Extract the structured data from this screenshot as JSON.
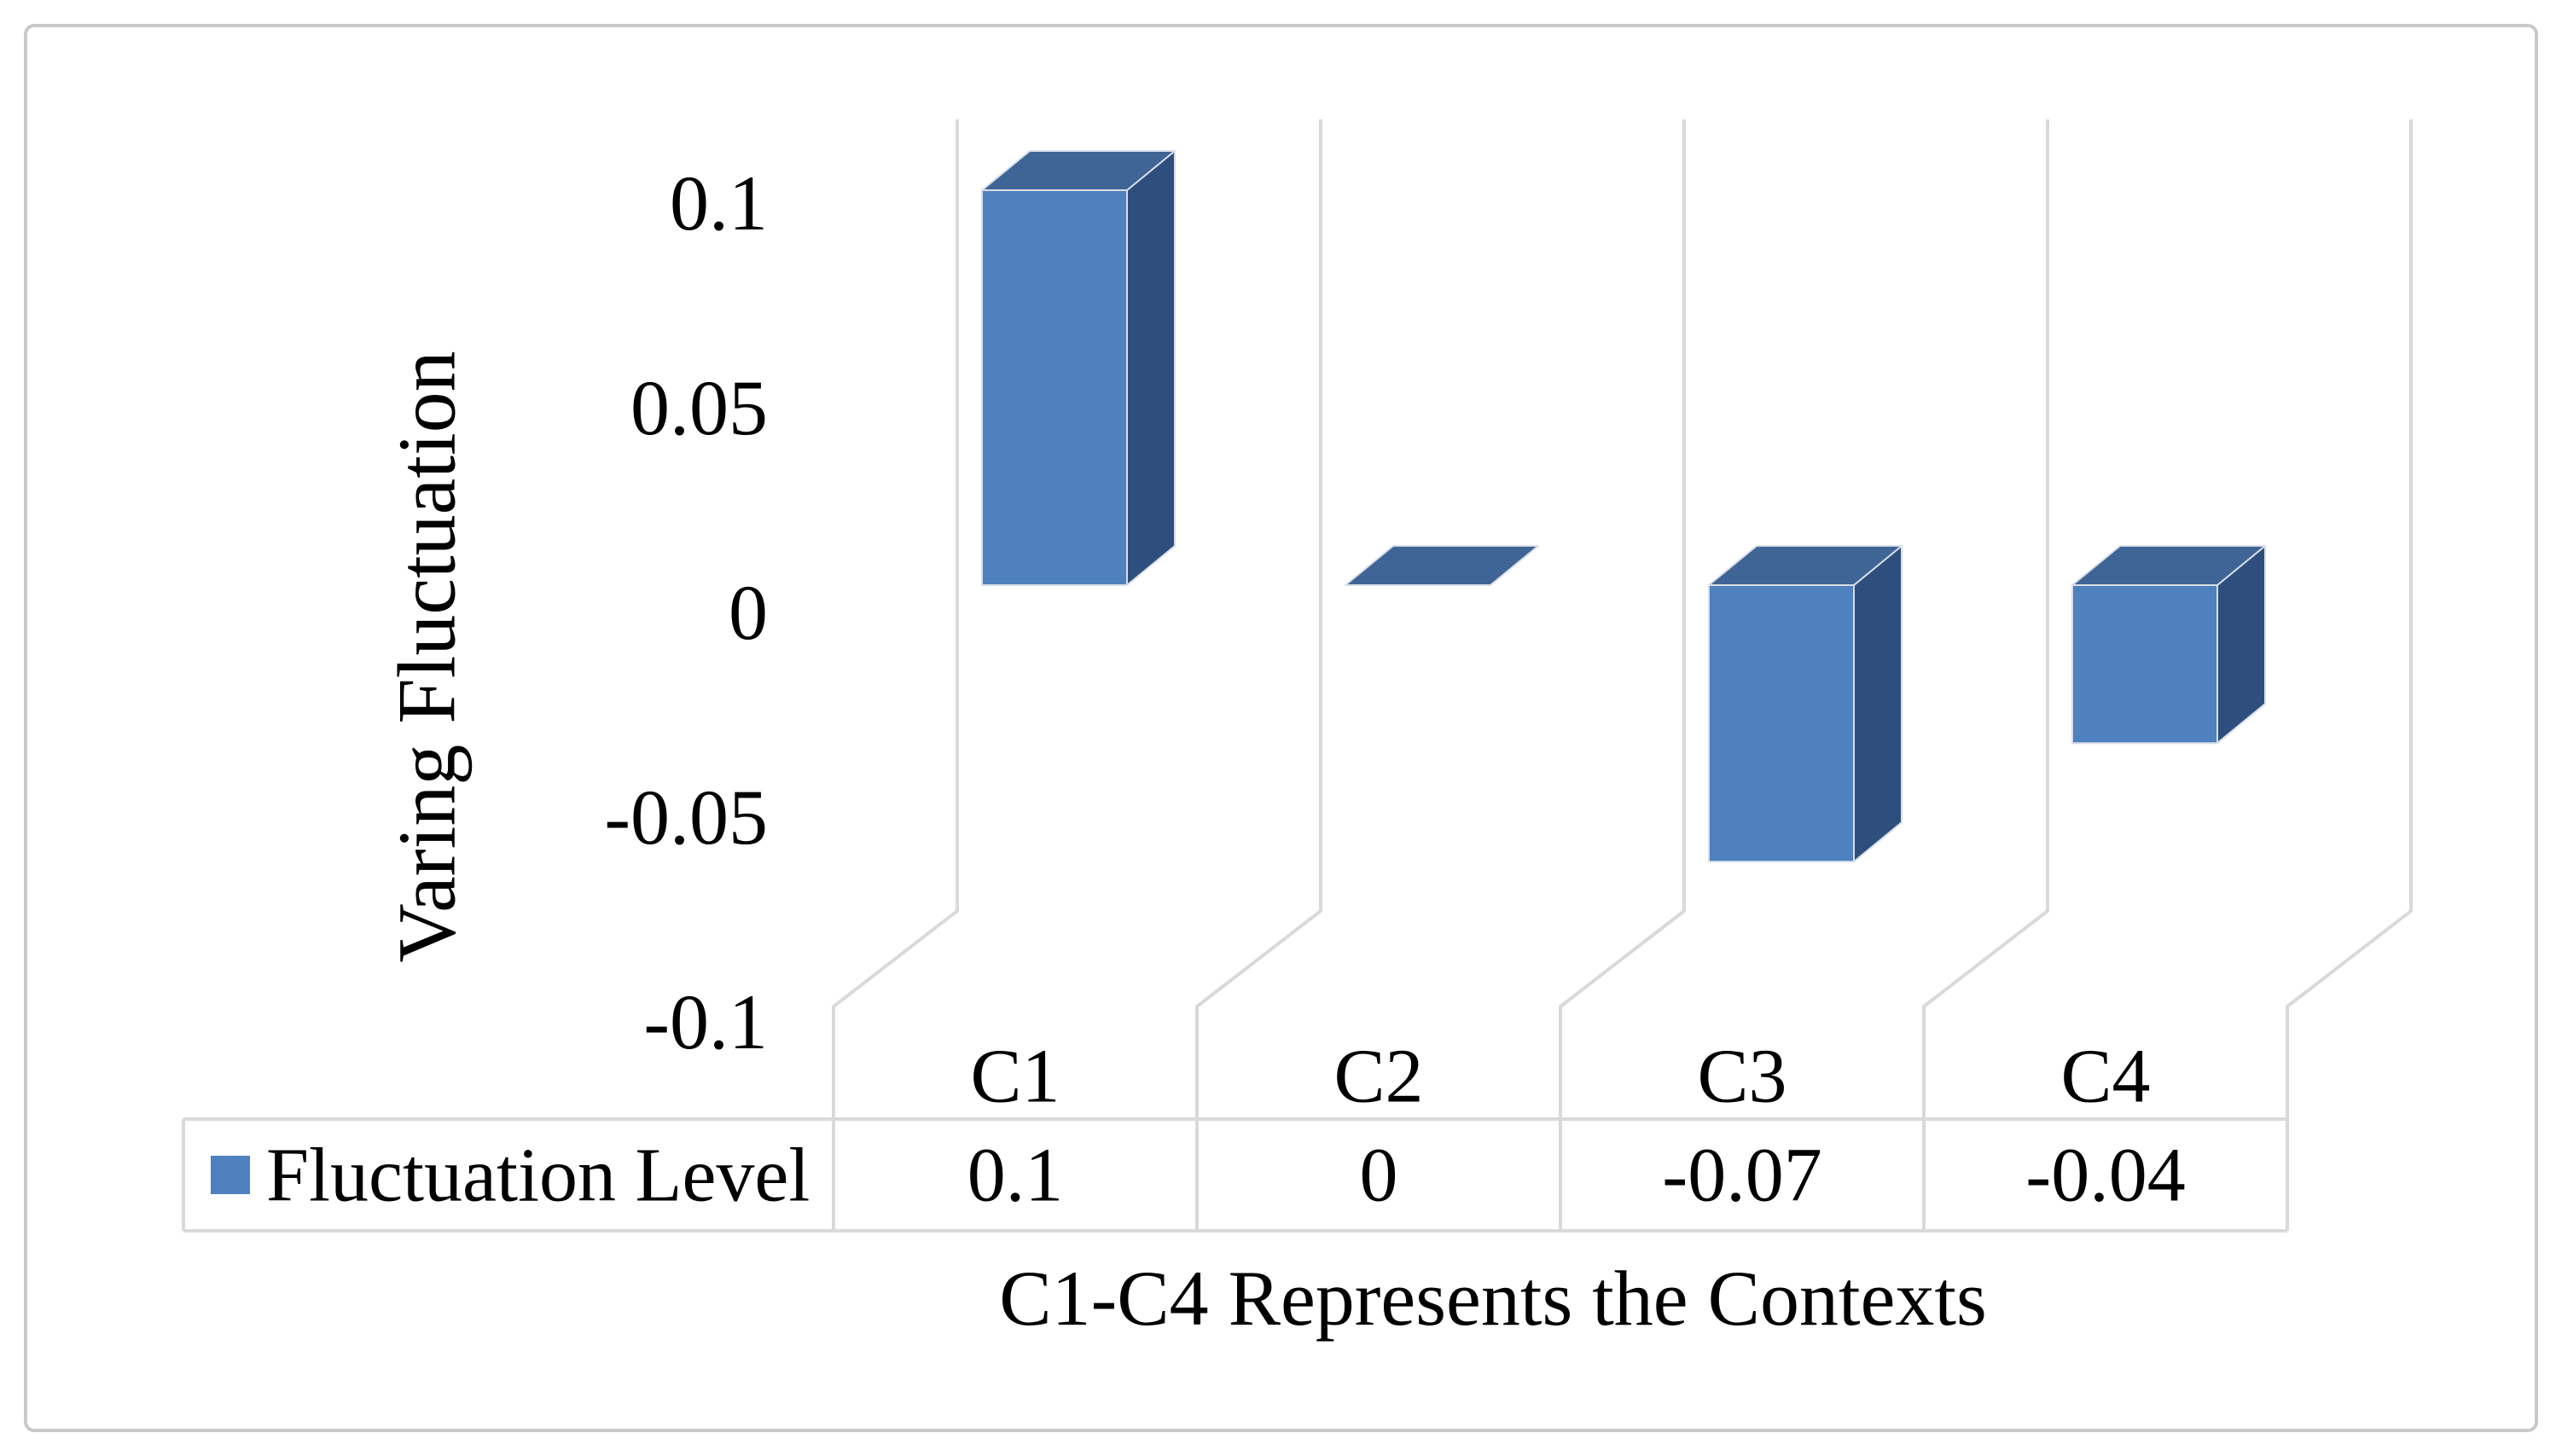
{
  "chart_data": {
    "type": "bar",
    "style": "3d-column-with-data-table",
    "title": "",
    "ylabel": "Varing Fluctuation",
    "xlabel": "C1-C4 Represents the Contexts",
    "categories": [
      "C1",
      "C2",
      "C3",
      "C4"
    ],
    "series": [
      {
        "name": "Fluctuation Level",
        "values": [
          0.1,
          0,
          -0.07,
          -0.04
        ],
        "value_labels": [
          "0.1",
          "0",
          "-0.07",
          "-0.04"
        ],
        "color": "#4E81BD"
      }
    ],
    "ylim": [
      -0.1,
      0.115
    ],
    "yticks": [
      {
        "value": 0.1,
        "label": "0.1"
      },
      {
        "value": 0.05,
        "label": "0.05"
      },
      {
        "value": 0,
        "label": "0"
      },
      {
        "value": -0.05,
        "label": "-0.05"
      },
      {
        "value": -0.1,
        "label": "-0.1"
      }
    ],
    "legend": {
      "position": "data-table-row-header",
      "entries": [
        {
          "label": "Fluctuation Level",
          "swatch_color": "#4E81BD"
        }
      ]
    },
    "grid": "vertical-category-wall-separators",
    "data_table_shown": true,
    "colors": {
      "bar_front": "#4E81BD",
      "bar_top": "#3F6496",
      "bar_side": "#2E4F7D",
      "bar_edge": "#D8DEE8",
      "gridline": "#D9D9D9",
      "table_border": "#D9D9D9",
      "text": "#000000",
      "frame": "#C9C9C9",
      "background": "#FFFFFF"
    }
  }
}
